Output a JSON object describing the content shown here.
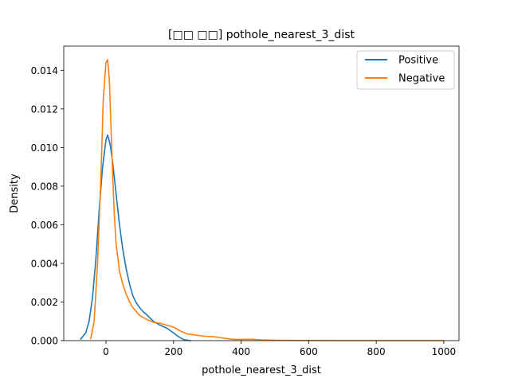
{
  "chart_data": {
    "type": "line",
    "title": "[□□ □□] pothole_nearest_3_dist",
    "xlabel": "pothole_nearest_3_dist",
    "ylabel": "Density",
    "xlim": [
      -125,
      1045
    ],
    "ylim": [
      0,
      0.01525
    ],
    "grid": false,
    "legend_position": "top-right",
    "x_ticks": [
      0,
      200,
      400,
      600,
      800,
      1000
    ],
    "x_tick_labels": [
      "0",
      "200",
      "400",
      "600",
      "800",
      "1000"
    ],
    "y_ticks": [
      0,
      0.002,
      0.004,
      0.006,
      0.008,
      0.01,
      0.012,
      0.014
    ],
    "y_tick_labels": [
      "0.000",
      "0.002",
      "0.004",
      "0.006",
      "0.008",
      "0.010",
      "0.012",
      "0.014"
    ],
    "series": [
      {
        "name": "Positive",
        "color": "#1f77b4",
        "points": [
          [
            -75,
            8e-05
          ],
          [
            -60,
            0.0004
          ],
          [
            -50,
            0.001
          ],
          [
            -40,
            0.0022
          ],
          [
            -30,
            0.0042
          ],
          [
            -20,
            0.0068
          ],
          [
            -10,
            0.009
          ],
          [
            0,
            0.0104
          ],
          [
            5,
            0.01065
          ],
          [
            12,
            0.0102
          ],
          [
            20,
            0.0092
          ],
          [
            30,
            0.0076
          ],
          [
            40,
            0.006
          ],
          [
            50,
            0.0047
          ],
          [
            60,
            0.0037
          ],
          [
            70,
            0.0029
          ],
          [
            80,
            0.0023
          ],
          [
            90,
            0.00195
          ],
          [
            100,
            0.0017
          ],
          [
            110,
            0.0015
          ],
          [
            120,
            0.00135
          ],
          [
            140,
            0.001
          ],
          [
            160,
            0.0008
          ],
          [
            180,
            0.00065
          ],
          [
            200,
            0.0004
          ],
          [
            215,
            0.0002
          ],
          [
            230,
            5e-05
          ],
          [
            250,
            0.0
          ]
        ]
      },
      {
        "name": "Negative",
        "color": "#ff7f0e",
        "points": [
          [
            -45,
            0.0001
          ],
          [
            -35,
            0.001
          ],
          [
            -25,
            0.004
          ],
          [
            -15,
            0.0085
          ],
          [
            -8,
            0.0125
          ],
          [
            0,
            0.0144
          ],
          [
            5,
            0.01455
          ],
          [
            10,
            0.0135
          ],
          [
            15,
            0.011
          ],
          [
            20,
            0.0085
          ],
          [
            25,
            0.0064
          ],
          [
            30,
            0.005
          ],
          [
            40,
            0.0036
          ],
          [
            50,
            0.0029
          ],
          [
            60,
            0.0024
          ],
          [
            70,
            0.002
          ],
          [
            80,
            0.0017
          ],
          [
            100,
            0.0013
          ],
          [
            120,
            0.0011
          ],
          [
            140,
            0.00095
          ],
          [
            160,
            0.0009
          ],
          [
            180,
            0.0008
          ],
          [
            200,
            0.0007
          ],
          [
            220,
            0.0005
          ],
          [
            240,
            0.00035
          ],
          [
            260,
            0.0003
          ],
          [
            280,
            0.00025
          ],
          [
            300,
            0.00022
          ],
          [
            320,
            0.0002
          ],
          [
            340,
            0.00015
          ],
          [
            360,
            0.0001
          ],
          [
            380,
            6e-05
          ],
          [
            400,
            6e-05
          ],
          [
            420,
            7e-05
          ],
          [
            440,
            6e-05
          ],
          [
            460,
            4e-05
          ],
          [
            500,
            2e-05
          ],
          [
            550,
            1e-05
          ],
          [
            600,
            1e-05
          ],
          [
            700,
            0.0
          ],
          [
            800,
            0.0
          ],
          [
            900,
            0.0
          ],
          [
            1000,
            0.0
          ]
        ]
      }
    ]
  }
}
